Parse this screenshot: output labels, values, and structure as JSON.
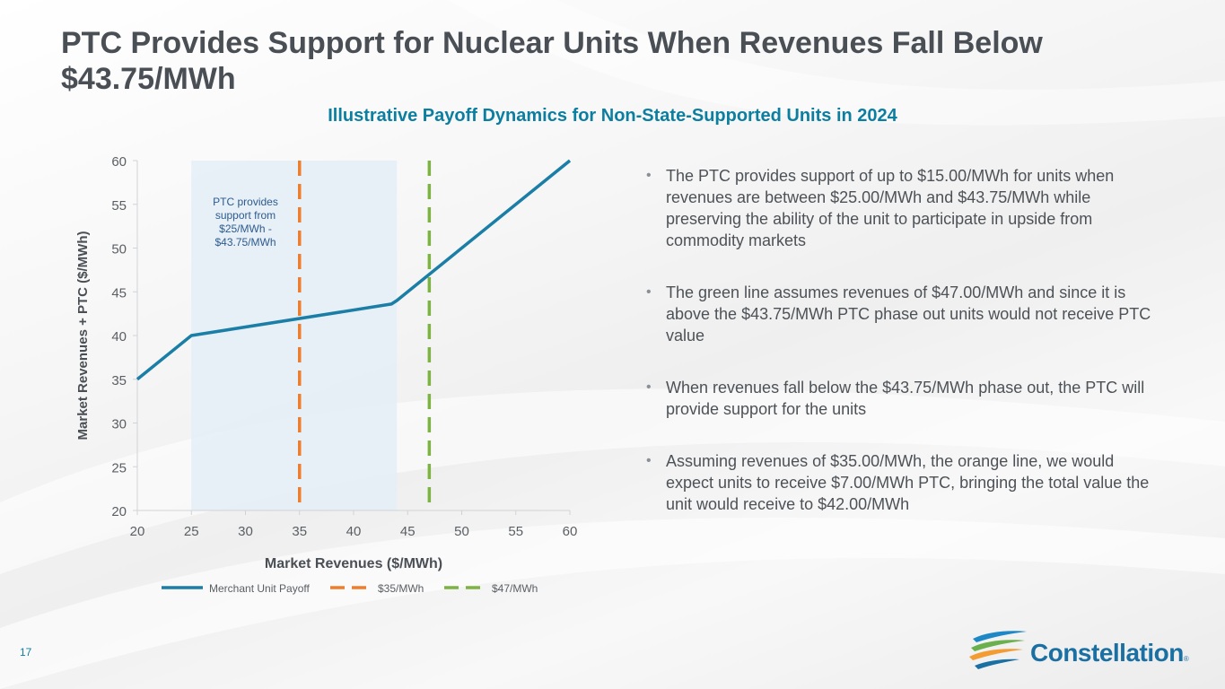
{
  "slide": {
    "title": "PTC Provides Support for Nuclear Units When Revenues Fall Below $43.75/MWh",
    "subtitle": "Illustrative Payoff Dynamics for Non-State-Supported Units in 2024",
    "page_number": "17",
    "bullets": [
      "The PTC provides support of up to $15.00/MWh for units when revenues are between $25.00/MWh and $43.75/MWh while preserving the ability of the unit to participate in upside from commodity markets",
      "The green line assumes revenues of $47.00/MWh and since it is above the $43.75/MWh PTC phase out units would not receive PTC value",
      "When revenues fall below the $43.75/MWh phase out, the PTC will provide support for the units",
      "Assuming revenues of $35.00/MWh, the orange line, we would expect units to receive $7.00/MWh PTC, bringing the total value the unit would receive to $42.00/MWh"
    ],
    "logo": {
      "text": "Constellation",
      "registered": "®"
    }
  },
  "colors": {
    "title": "#4a4f55",
    "accent": "#0c7ea0",
    "payoff_line": "#1a7ea6",
    "orange_line": "#ee7d2c",
    "green_line": "#7cb342",
    "shade": "#e4edf7",
    "annotation": "#2d5c8f"
  },
  "chart_data": {
    "type": "line",
    "xlabel": "Market Revenues ($/MWh)",
    "ylabel": "Market Revenues + PTC ($/MWh)",
    "xlim": [
      20,
      60
    ],
    "ylim": [
      20,
      60
    ],
    "x_ticks": [
      20,
      25,
      30,
      35,
      40,
      45,
      50,
      55,
      60
    ],
    "y_ticks": [
      20,
      25,
      30,
      35,
      40,
      45,
      50,
      55,
      60
    ],
    "series": [
      {
        "name": "Merchant Unit Payoff",
        "x": [
          20,
          25,
          43.5,
          44,
          60
        ],
        "y": [
          35,
          40,
          43.6,
          44,
          60
        ]
      }
    ],
    "vlines": [
      {
        "name": "$35/MWh",
        "x": 35,
        "style": "dashed"
      },
      {
        "name": "$47/MWh",
        "x": 47,
        "style": "dashed"
      }
    ],
    "shaded_region": {
      "x_from": 25,
      "x_to": 44
    },
    "annotation": {
      "text_lines": [
        "PTC provides",
        "support from",
        "$25/MWh -",
        "$43.75/MWh"
      ],
      "x": 30,
      "y": 58
    },
    "legend": [
      "Merchant Unit Payoff",
      "$35/MWh",
      "$47/MWh"
    ],
    "legend_position": "bottom"
  }
}
